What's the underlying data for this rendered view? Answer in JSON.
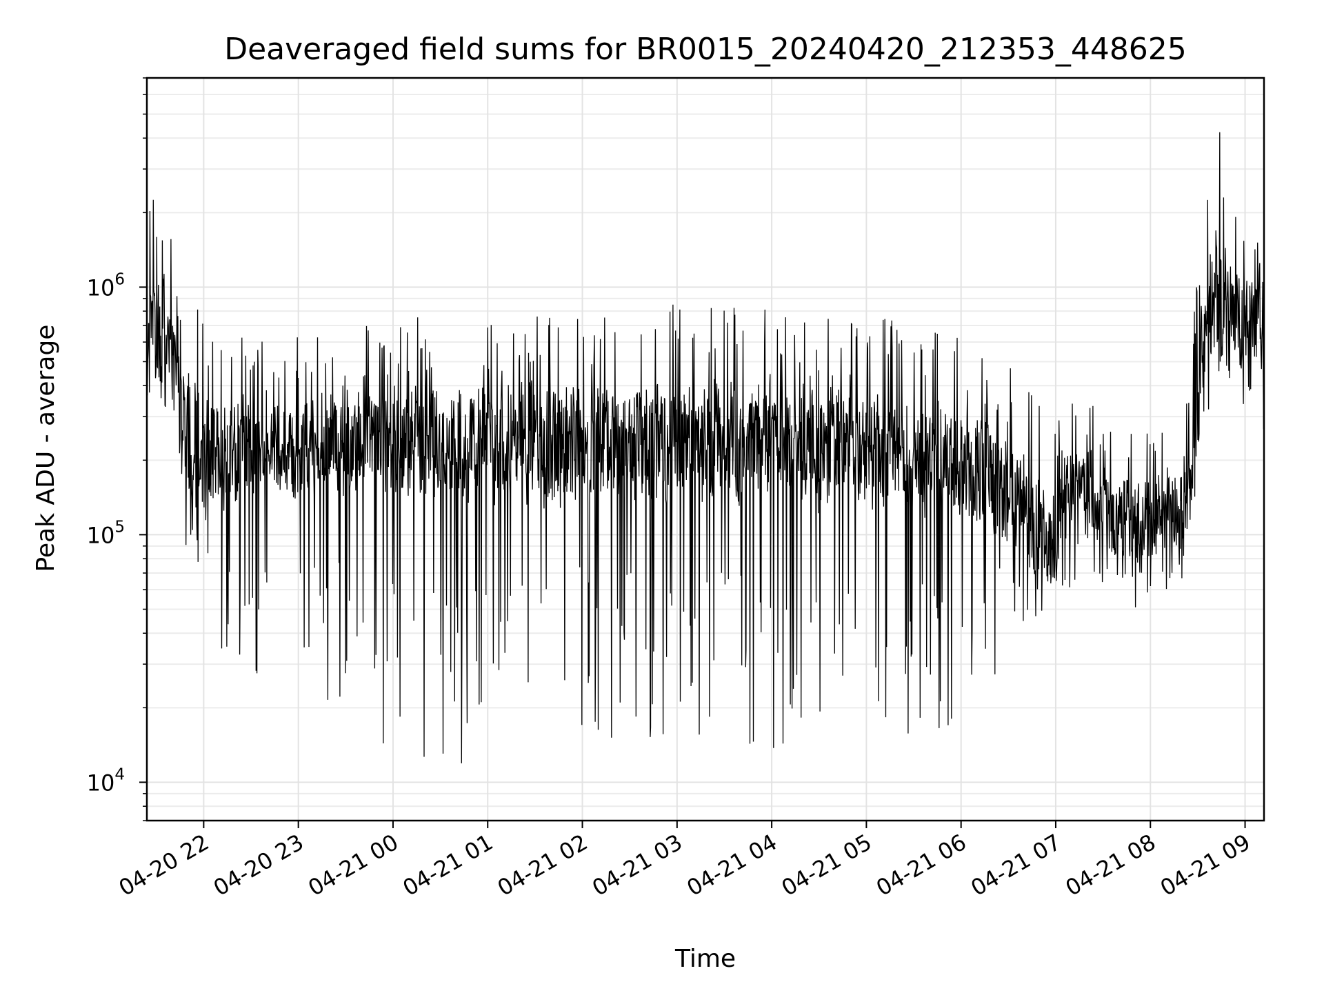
{
  "chart_data": {
    "type": "line",
    "title": "Deaveraged field sums for BR0015_20240420_212353_448625",
    "xlabel": "Time",
    "ylabel": "Peak ADU - average",
    "yscale": "log",
    "ylim": [
      7000,
      7000000
    ],
    "xlim": [
      "2024-04-20 21:24",
      "2024-04-21 09:12"
    ],
    "grid": true,
    "line_color": "#000000",
    "x_ticks": [
      {
        "time": "2024-04-20 22:00",
        "label": "04-20 22"
      },
      {
        "time": "2024-04-20 23:00",
        "label": "04-20 23"
      },
      {
        "time": "2024-04-21 00:00",
        "label": "04-21 00"
      },
      {
        "time": "2024-04-21 01:00",
        "label": "04-21 01"
      },
      {
        "time": "2024-04-21 02:00",
        "label": "04-21 02"
      },
      {
        "time": "2024-04-21 03:00",
        "label": "04-21 03"
      },
      {
        "time": "2024-04-21 04:00",
        "label": "04-21 04"
      },
      {
        "time": "2024-04-21 05:00",
        "label": "04-21 05"
      },
      {
        "time": "2024-04-21 06:00",
        "label": "04-21 06"
      },
      {
        "time": "2024-04-21 07:00",
        "label": "04-21 07"
      },
      {
        "time": "2024-04-21 08:00",
        "label": "04-21 08"
      },
      {
        "time": "2024-04-21 09:00",
        "label": "04-21 09"
      }
    ],
    "y_ticks": [
      {
        "value": 10000,
        "base": "10",
        "exp": "4"
      },
      {
        "value": 100000,
        "base": "10",
        "exp": "5"
      },
      {
        "value": 1000000,
        "base": "10",
        "exp": "6"
      }
    ],
    "series": [
      {
        "x": [
          "2024-04-20 21:24",
          "2024-04-20 21:30",
          "2024-04-20 21:36",
          "2024-04-20 21:42",
          "2024-04-20 21:48",
          "2024-04-20 21:54",
          "2024-04-20 22:00",
          "2024-04-20 22:06",
          "2024-04-20 22:12",
          "2024-04-20 22:18",
          "2024-04-20 22:24",
          "2024-04-20 22:30",
          "2024-04-20 22:36",
          "2024-04-20 22:42",
          "2024-04-20 22:48",
          "2024-04-20 22:54",
          "2024-04-20 23:00",
          "2024-04-20 23:06",
          "2024-04-20 23:12",
          "2024-04-20 23:18",
          "2024-04-20 23:24",
          "2024-04-20 23:30",
          "2024-04-20 23:36",
          "2024-04-20 23:42",
          "2024-04-20 23:48",
          "2024-04-20 23:54",
          "2024-04-21 00:00",
          "2024-04-21 00:06",
          "2024-04-21 00:12",
          "2024-04-21 00:18",
          "2024-04-21 00:24",
          "2024-04-21 00:30",
          "2024-04-21 00:36",
          "2024-04-21 00:42",
          "2024-04-21 00:48",
          "2024-04-21 00:54",
          "2024-04-21 01:00",
          "2024-04-21 01:06",
          "2024-04-21 01:12",
          "2024-04-21 01:18",
          "2024-04-21 01:24",
          "2024-04-21 01:30",
          "2024-04-21 01:36",
          "2024-04-21 01:42",
          "2024-04-21 01:48",
          "2024-04-21 01:54",
          "2024-04-21 02:00",
          "2024-04-21 02:06",
          "2024-04-21 02:12",
          "2024-04-21 02:18",
          "2024-04-21 02:24",
          "2024-04-21 02:30",
          "2024-04-21 02:36",
          "2024-04-21 02:42",
          "2024-04-21 02:48",
          "2024-04-21 02:54",
          "2024-04-21 03:00",
          "2024-04-21 03:06",
          "2024-04-21 03:12",
          "2024-04-21 03:18",
          "2024-04-21 03:24",
          "2024-04-21 03:30",
          "2024-04-21 03:36",
          "2024-04-21 03:42",
          "2024-04-21 03:48",
          "2024-04-21 03:54",
          "2024-04-21 04:00",
          "2024-04-21 04:06",
          "2024-04-21 04:12",
          "2024-04-21 04:18",
          "2024-04-21 04:24",
          "2024-04-21 04:30",
          "2024-04-21 04:36",
          "2024-04-21 04:42",
          "2024-04-21 04:48",
          "2024-04-21 04:54",
          "2024-04-21 05:00",
          "2024-04-21 05:06",
          "2024-04-21 05:12",
          "2024-04-21 05:18",
          "2024-04-21 05:24",
          "2024-04-21 05:30",
          "2024-04-21 05:36",
          "2024-04-21 05:42",
          "2024-04-21 05:48",
          "2024-04-21 05:54",
          "2024-04-21 06:00",
          "2024-04-21 06:06",
          "2024-04-21 06:12",
          "2024-04-21 06:18",
          "2024-04-21 06:24",
          "2024-04-21 06:30",
          "2024-04-21 06:36",
          "2024-04-21 06:42",
          "2024-04-21 06:48",
          "2024-04-21 06:54",
          "2024-04-21 07:00",
          "2024-04-21 07:06",
          "2024-04-21 07:12",
          "2024-04-21 07:18",
          "2024-04-21 07:24",
          "2024-04-21 07:30",
          "2024-04-21 07:36",
          "2024-04-21 07:42",
          "2024-04-21 07:48",
          "2024-04-21 07:54",
          "2024-04-21 08:00",
          "2024-04-21 08:06",
          "2024-04-21 08:12",
          "2024-04-21 08:18",
          "2024-04-21 08:24",
          "2024-04-21 08:30",
          "2024-04-21 08:36",
          "2024-04-21 08:42",
          "2024-04-21 08:48",
          "2024-04-21 08:54",
          "2024-04-21 09:00",
          "2024-04-21 09:06",
          "2024-04-21 09:12"
        ],
        "y_typical": [
          700000,
          750000,
          650000,
          600000,
          300000,
          280000,
          260000,
          250000,
          220000,
          240000,
          260000,
          250000,
          250000,
          240000,
          260000,
          250000,
          260000,
          250000,
          260000,
          260000,
          270000,
          260000,
          270000,
          280000,
          270000,
          280000,
          280000,
          270000,
          280000,
          290000,
          280000,
          270000,
          280000,
          270000,
          260000,
          280000,
          270000,
          270000,
          280000,
          280000,
          280000,
          270000,
          270000,
          270000,
          260000,
          260000,
          270000,
          280000,
          280000,
          270000,
          280000,
          290000,
          280000,
          270000,
          270000,
          270000,
          280000,
          280000,
          280000,
          270000,
          280000,
          290000,
          280000,
          270000,
          280000,
          290000,
          280000,
          280000,
          270000,
          270000,
          260000,
          250000,
          250000,
          250000,
          260000,
          260000,
          270000,
          250000,
          250000,
          240000,
          240000,
          240000,
          230000,
          230000,
          240000,
          230000,
          230000,
          220000,
          210000,
          200000,
          180000,
          170000,
          160000,
          140000,
          120000,
          110000,
          110000,
          160000,
          180000,
          190000,
          170000,
          150000,
          140000,
          140000,
          130000,
          130000,
          130000,
          140000,
          140000,
          150000,
          170000,
          400000,
          900000,
          1100000,
          1000000,
          950000,
          900000,
          1000000,
          950000
        ],
        "y_high": [
          2000000,
          3500000,
          2200000,
          1800000,
          1200000,
          1000000,
          900000,
          800000,
          700000,
          700000,
          650000,
          650000,
          650000,
          600000,
          650000,
          600000,
          700000,
          650000,
          700000,
          650000,
          700000,
          750000,
          700000,
          750000,
          700000,
          750000,
          800000,
          780000,
          800000,
          820000,
          800000,
          780000,
          850000,
          800000,
          780000,
          820000,
          800000,
          790000,
          850000,
          920000,
          900000,
          900000,
          850000,
          880000,
          820000,
          860000,
          840000,
          900000,
          880000,
          850000,
          880000,
          900000,
          950000,
          900000,
          900000,
          870000,
          900000,
          910000,
          880000,
          880000,
          900000,
          920000,
          930000,
          950000,
          930000,
          920000,
          900000,
          850000,
          800000,
          780000,
          800000,
          780000,
          760000,
          750000,
          760000,
          740000,
          760000,
          760000,
          780000,
          740000,
          700000,
          700000,
          680000,
          680000,
          660000,
          650000,
          640000,
          620000,
          600000,
          580000,
          520000,
          500000,
          460000,
          420000,
          350000,
          300000,
          280000,
          320000,
          350000,
          360000,
          340000,
          320000,
          300000,
          300000,
          290000,
          290000,
          280000,
          300000,
          300000,
          320000,
          380000,
          1200000,
          3000000,
          5200000,
          3200000,
          2500000,
          2200000,
          2700000,
          3000000
        ],
        "y_low": [
          380000,
          450000,
          350000,
          300000,
          80000,
          50000,
          48000,
          45000,
          20000,
          18000,
          14000,
          20000,
          25000,
          30000,
          18000,
          15000,
          25000,
          17000,
          16000,
          18000,
          20000,
          19000,
          16000,
          15000,
          14000,
          13000,
          14500,
          14000,
          13000,
          12500,
          13000,
          12000,
          9500,
          11000,
          12500,
          13000,
          13000,
          14000,
          13500,
          14000,
          15000,
          16000,
          15000,
          14500,
          16000,
          17000,
          17000,
          16000,
          15500,
          14000,
          15000,
          16000,
          14000,
          13500,
          14500,
          15000,
          16000,
          15000,
          15500,
          14500,
          15000,
          16000,
          14000,
          13000,
          12000,
          11000,
          10800,
          11000,
          10500,
          10200,
          11000,
          12000,
          13000,
          14000,
          15000,
          14000,
          13500,
          13000,
          12500,
          13000,
          14000,
          15000,
          14000,
          13500,
          13800,
          14000,
          15000,
          16000,
          17000,
          20000,
          25000,
          28000,
          30000,
          40000,
          45000,
          50000,
          55000,
          60000,
          60000,
          65000,
          65000,
          60000,
          55000,
          55000,
          50000,
          52000,
          52000,
          55000,
          60000,
          65000,
          70000,
          150000,
          300000,
          400000,
          400000,
          350000,
          300000,
          250000,
          230000
        ]
      }
    ]
  }
}
